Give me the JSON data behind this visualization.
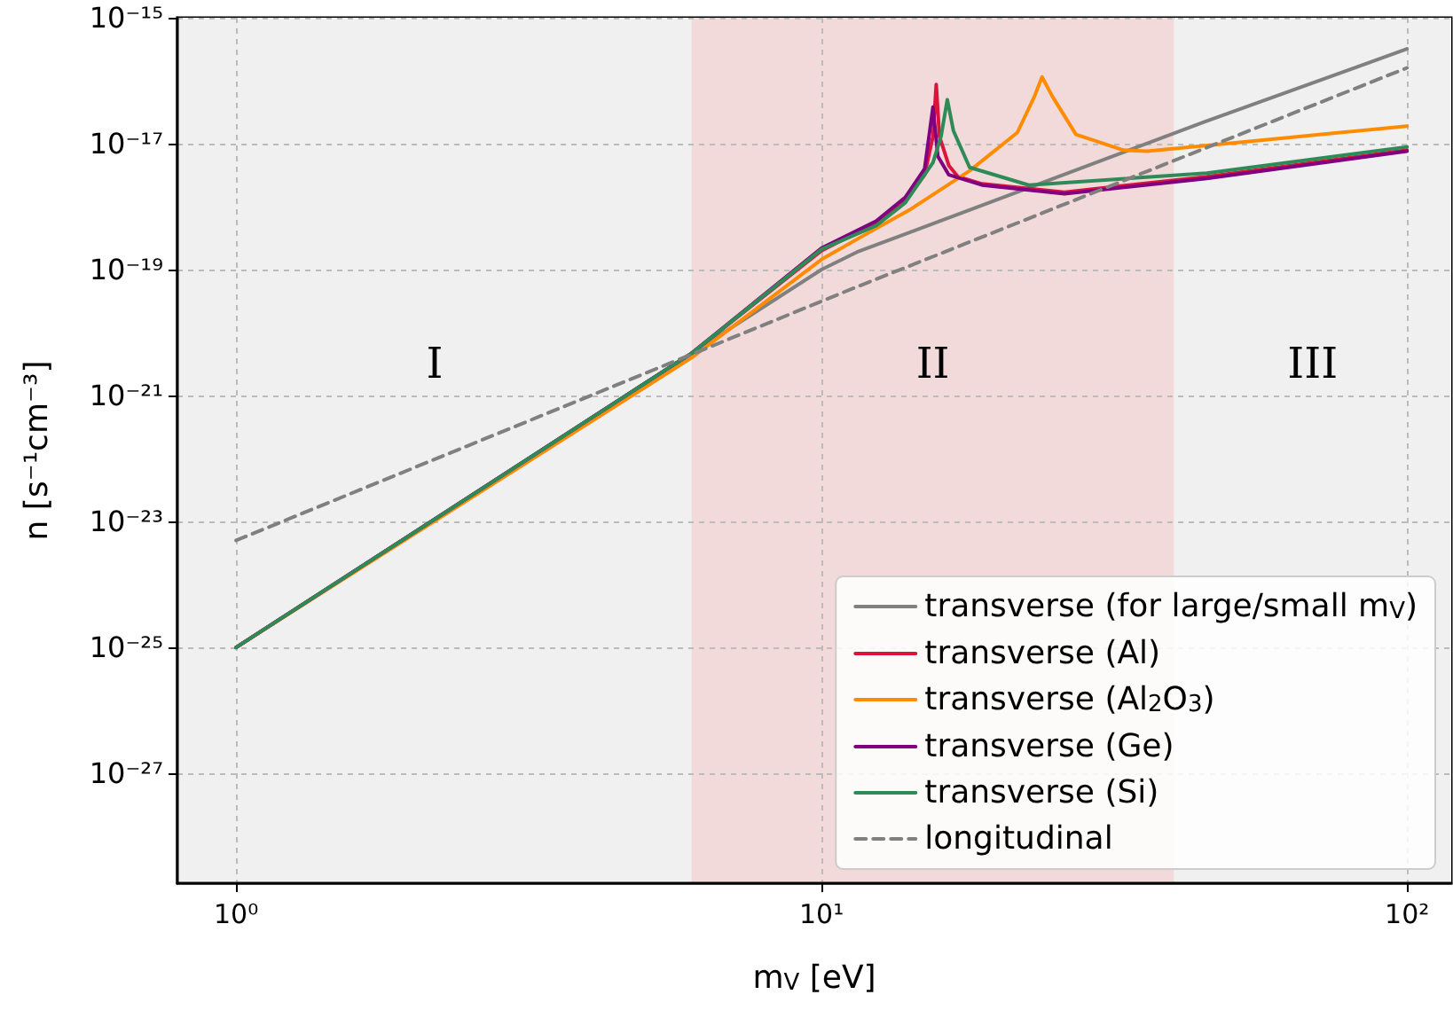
{
  "chart_data": {
    "type": "line",
    "xlabel": "m$_{V}$ [eV]",
    "ylabel": "n [s⁻¹cm⁻³]",
    "log": "xy",
    "xlim": [
      0.794,
      119
    ],
    "ylim": [
      1.8e-29,
      1e-15
    ],
    "xticks": [
      {
        "value": 1,
        "label": "10⁰"
      },
      {
        "value": 10,
        "label": "10¹"
      },
      {
        "value": 100,
        "label": "10²"
      }
    ],
    "yticks": [
      {
        "value": 1e-27,
        "label": "10⁻²⁷"
      },
      {
        "value": 1e-25,
        "label": "10⁻²⁵"
      },
      {
        "value": 1e-23,
        "label": "10⁻²³"
      },
      {
        "value": 1e-21,
        "label": "10⁻²¹"
      },
      {
        "value": 1e-19,
        "label": "10⁻¹⁹"
      },
      {
        "value": 1e-17,
        "label": "10⁻¹⁷"
      },
      {
        "value": 1e-15,
        "label": "10⁻¹⁵"
      }
    ],
    "grid": true,
    "legend": "bottom right",
    "marker": "none",
    "line_style": "solid",
    "series": [
      {
        "name": "transverse (for large/small m$_{V}$)",
        "color": "#808080",
        "x": [
          1,
          6,
          10,
          11.5,
          20,
          45,
          100
        ],
        "values": [
          1e-25,
          4.7e-21,
          1e-19,
          1.9e-19,
          1.3e-18,
          2.2e-17,
          3.2e-16
        ]
      },
      {
        "name": "transverse (Al)",
        "color": "#dc143c",
        "x": [
          1,
          6,
          10,
          12.4,
          13.9,
          15,
          15.5,
          15.7,
          15.9,
          16.5,
          17.1,
          18.8,
          26,
          45.5,
          100
        ],
        "values": [
          1e-25,
          4.7e-21,
          2e-19,
          5.6e-19,
          1.3e-18,
          3.2e-18,
          1.3e-17,
          8.7e-17,
          1.3e-17,
          4.5e-18,
          3e-18,
          2.3e-18,
          1.7e-18,
          3e-18,
          7.9e-18
        ]
      },
      {
        "name": "transverse (Al$_{2}$O$_{3}$)",
        "color": "#ff8c00",
        "x": [
          1,
          6,
          10,
          12,
          14.2,
          17.9,
          21.6,
          23.1,
          23.8,
          24.8,
          27.2,
          32.8,
          36,
          54.7,
          100
        ],
        "values": [
          1e-25,
          4e-21,
          1.45e-19,
          3.8e-19,
          9.1e-19,
          3.7e-18,
          1.5e-17,
          5.6e-17,
          1.15e-16,
          5.6e-17,
          1.4e-17,
          7.9e-18,
          7.6e-18,
          1.1e-17,
          1.9e-17
        ]
      },
      {
        "name": "transverse (Ge)",
        "color": "#800080",
        "x": [
          1,
          6,
          10,
          12.4,
          13.9,
          15,
          15.5,
          15.8,
          16.5,
          18.8,
          26,
          45.5,
          100
        ],
        "values": [
          1e-25,
          4.7e-21,
          2.2e-19,
          5.9e-19,
          1.4e-18,
          4e-18,
          3.8e-17,
          6.3e-18,
          3.2e-18,
          2.2e-18,
          1.6e-18,
          2.8e-18,
          7.6e-18
        ]
      },
      {
        "name": "transverse (Si)",
        "color": "#2e8b57",
        "x": [
          1,
          6,
          10,
          12.4,
          13.9,
          15.5,
          16,
          16.4,
          16.8,
          17.9,
          22.6,
          45.5,
          100
        ],
        "values": [
          1e-25,
          4.7e-21,
          2.1e-19,
          5e-19,
          1.15e-18,
          5e-18,
          1.3e-17,
          5e-17,
          1.6e-17,
          4.2e-18,
          2.2e-18,
          3.4e-18,
          8.9e-18
        ]
      },
      {
        "name": "longitudinal",
        "color": "#808080",
        "line_style": "dashed",
        "x": [
          1,
          11.3,
          100
        ],
        "values": [
          5e-24,
          5e-20,
          1.6e-16
        ]
      }
    ],
    "bands": [
      {
        "axis": "x",
        "from": 0.794,
        "to": 6,
        "color": "#f0f0f0",
        "label": "I"
      },
      {
        "axis": "x",
        "from": 6,
        "to": 40,
        "color": "#f2dada",
        "label": "II"
      },
      {
        "axis": "x",
        "from": 40,
        "to": 119,
        "color": "#f0f0f0",
        "label": "III"
      }
    ]
  }
}
